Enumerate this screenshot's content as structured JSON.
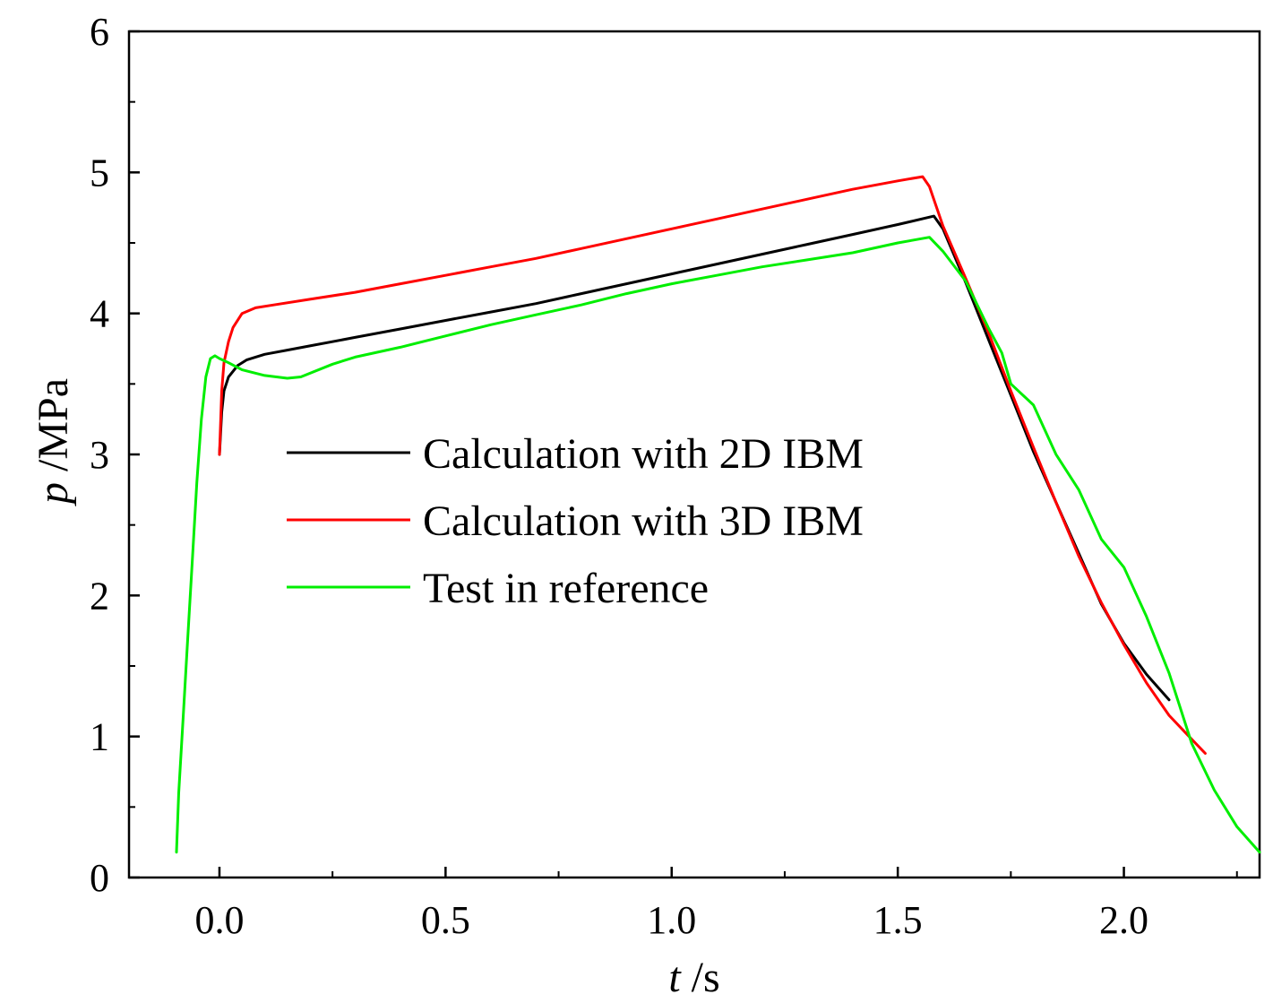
{
  "chart_data": {
    "type": "line",
    "title": "",
    "xlabel": {
      "var": "t",
      "unit": " /s"
    },
    "ylabel": {
      "var": "p",
      "unit": " /MPa"
    },
    "xlim": [
      -0.2,
      2.3
    ],
    "ylim": [
      0,
      6
    ],
    "xticks": [
      0.0,
      0.5,
      1.0,
      1.5,
      2.0
    ],
    "xtick_labels": [
      "0.0",
      "0.5",
      "1.0",
      "1.5",
      "2.0"
    ],
    "yticks": [
      0,
      1,
      2,
      3,
      4,
      5,
      6
    ],
    "ytick_labels": [
      "0",
      "1",
      "2",
      "3",
      "4",
      "5",
      "6"
    ],
    "grid": false,
    "legend_position": "center",
    "series": [
      {
        "name": "Calculation with 2D IBM",
        "color": "#000000",
        "x": [
          0.0,
          0.005,
          0.01,
          0.02,
          0.04,
          0.06,
          0.1,
          0.15,
          0.2,
          0.3,
          0.4,
          0.5,
          0.6,
          0.7,
          0.8,
          0.9,
          1.0,
          1.1,
          1.2,
          1.3,
          1.4,
          1.5,
          1.58,
          1.6,
          1.65,
          1.7,
          1.75,
          1.8,
          1.85,
          1.9,
          1.95,
          2.0,
          2.05,
          2.1
        ],
        "y": [
          3.0,
          3.3,
          3.45,
          3.55,
          3.63,
          3.67,
          3.71,
          3.74,
          3.77,
          3.83,
          3.89,
          3.95,
          4.01,
          4.07,
          4.14,
          4.21,
          4.28,
          4.35,
          4.42,
          4.49,
          4.56,
          4.63,
          4.69,
          4.6,
          4.22,
          3.82,
          3.42,
          3.02,
          2.66,
          2.3,
          1.94,
          1.66,
          1.44,
          1.26
        ]
      },
      {
        "name": "Calculation with 3D IBM",
        "color": "#ff0000",
        "x": [
          0.0,
          0.005,
          0.01,
          0.02,
          0.03,
          0.05,
          0.08,
          0.12,
          0.2,
          0.3,
          0.4,
          0.5,
          0.6,
          0.7,
          0.8,
          0.9,
          1.0,
          1.1,
          1.2,
          1.3,
          1.4,
          1.5,
          1.555,
          1.57,
          1.6,
          1.65,
          1.7,
          1.75,
          1.8,
          1.85,
          1.9,
          1.95,
          2.0,
          2.05,
          2.1,
          2.15,
          2.18
        ],
        "y": [
          3.0,
          3.45,
          3.65,
          3.8,
          3.9,
          4.0,
          4.04,
          4.06,
          4.1,
          4.15,
          4.21,
          4.27,
          4.33,
          4.39,
          4.46,
          4.53,
          4.6,
          4.67,
          4.74,
          4.81,
          4.88,
          4.94,
          4.97,
          4.9,
          4.62,
          4.25,
          3.87,
          3.45,
          3.05,
          2.66,
          2.28,
          1.95,
          1.65,
          1.38,
          1.15,
          0.98,
          0.88
        ]
      },
      {
        "name": "Test in reference",
        "color": "#00ee00",
        "x": [
          -0.095,
          -0.09,
          -0.08,
          -0.07,
          -0.06,
          -0.05,
          -0.04,
          -0.03,
          -0.02,
          -0.01,
          0.0,
          0.02,
          0.05,
          0.1,
          0.15,
          0.18,
          0.25,
          0.3,
          0.4,
          0.5,
          0.6,
          0.7,
          0.8,
          0.9,
          1.0,
          1.1,
          1.2,
          1.3,
          1.4,
          1.5,
          1.57,
          1.6,
          1.65,
          1.7,
          1.73,
          1.75,
          1.8,
          1.85,
          1.9,
          1.95,
          2.0,
          2.05,
          2.1,
          2.15,
          2.2,
          2.25,
          2.3
        ],
        "y": [
          0.18,
          0.6,
          1.15,
          1.7,
          2.25,
          2.8,
          3.25,
          3.55,
          3.68,
          3.7,
          3.68,
          3.65,
          3.6,
          3.56,
          3.54,
          3.55,
          3.64,
          3.69,
          3.76,
          3.84,
          3.92,
          3.99,
          4.06,
          4.14,
          4.21,
          4.27,
          4.33,
          4.38,
          4.43,
          4.5,
          4.54,
          4.44,
          4.23,
          3.9,
          3.72,
          3.5,
          3.35,
          3.0,
          2.75,
          2.4,
          2.2,
          1.85,
          1.45,
          0.95,
          0.62,
          0.36,
          0.18
        ]
      }
    ]
  }
}
